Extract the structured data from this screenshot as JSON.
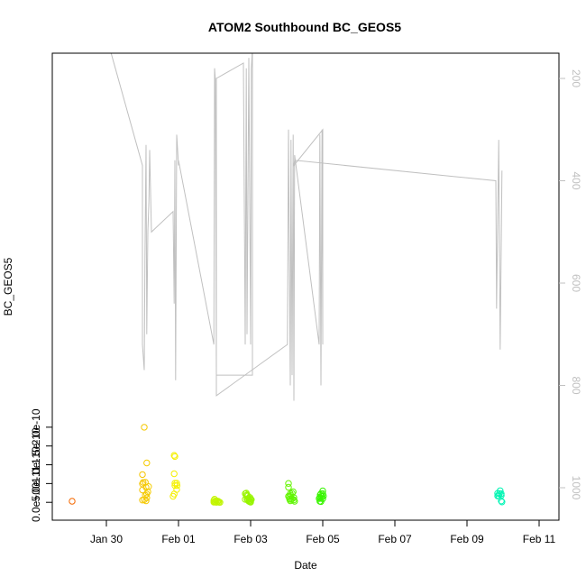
{
  "chart_data": {
    "type": "scatter",
    "title": "ATOM2 Southbound BC_GEOS5",
    "xlabel": "Date",
    "ylabel": "BC_GEOS5",
    "x_ticks": [
      "Jan 30",
      "Feb 01",
      "Feb 03",
      "Feb 05",
      "Feb 07",
      "Feb 09",
      "Feb 11"
    ],
    "y_ticks": [
      "0.0e+00",
      "5.0e-11",
      "1.0e-10",
      "1.5e-10",
      "2.0e-10"
    ],
    "right_ticks": [
      "200",
      "400",
      "600",
      "800",
      "1000"
    ],
    "x_range_days": [
      -1.0,
      11.25
    ],
    "ylim": [
      -6e-12,
      2.11e-10
    ],
    "right_range": [
      1055,
      130
    ],
    "points": [
      {
        "x": -0.95,
        "y": 2.8e-12
      },
      {
        "x": 1.05,
        "y": 2e-10
      },
      {
        "x": 1.12,
        "y": 1.05e-10
      },
      {
        "x": 1.0,
        "y": 7.4e-11
      },
      {
        "x": 1.02,
        "y": 5.3e-11
      },
      {
        "x": 1.08,
        "y": 5.35e-11
      },
      {
        "x": 1.0,
        "y": 4.9e-11
      },
      {
        "x": 1.17,
        "y": 4.2e-11
      },
      {
        "x": 1.1,
        "y": 4e-11
      },
      {
        "x": 1.0,
        "y": 3.3e-11
      },
      {
        "x": 1.15,
        "y": 2.8e-11
      },
      {
        "x": 1.12,
        "y": 2.2e-11
      },
      {
        "x": 1.08,
        "y": 1.9e-11
      },
      {
        "x": 1.12,
        "y": 1.2e-11
      },
      {
        "x": 1.05,
        "y": 7e-12
      },
      {
        "x": 1.0,
        "y": 6e-12
      },
      {
        "x": 1.1,
        "y": 4e-12
      },
      {
        "x": 1.88,
        "y": 1.25e-10
      },
      {
        "x": 1.9,
        "y": 1.22e-10
      },
      {
        "x": 1.88,
        "y": 7.6e-11
      },
      {
        "x": 1.9,
        "y": 5.1e-11
      },
      {
        "x": 1.95,
        "y": 5.1e-11
      },
      {
        "x": 1.9,
        "y": 4.5e-11
      },
      {
        "x": 1.96,
        "y": 4.5e-11
      },
      {
        "x": 1.95,
        "y": 3.4e-11
      },
      {
        "x": 1.88,
        "y": 2.2e-11
      },
      {
        "x": 1.85,
        "y": 1.6e-11
      },
      {
        "x": 3.0,
        "y": 8.5e-12
      },
      {
        "x": 2.98,
        "y": 5e-12
      },
      {
        "x": 3.05,
        "y": 4e-12
      },
      {
        "x": 3.1,
        "y": 3e-12
      },
      {
        "x": 3.0,
        "y": 2e-12
      },
      {
        "x": 3.08,
        "y": 1.5e-12
      },
      {
        "x": 3.02,
        "y": 1e-12
      },
      {
        "x": 2.98,
        "y": 5e-13
      },
      {
        "x": 3.12,
        "y": 5e-13
      },
      {
        "x": 3.05,
        "y": 0.0
      },
      {
        "x": 3.15,
        "y": 0.0
      },
      {
        "x": 3.88,
        "y": 2.45e-11
      },
      {
        "x": 3.85,
        "y": 2.3e-11
      },
      {
        "x": 3.9,
        "y": 2e-11
      },
      {
        "x": 3.88,
        "y": 1.8e-11
      },
      {
        "x": 3.92,
        "y": 1.7e-11
      },
      {
        "x": 3.98,
        "y": 1.3e-11
      },
      {
        "x": 3.95,
        "y": 1e-11
      },
      {
        "x": 3.9,
        "y": 9e-12
      },
      {
        "x": 4.0,
        "y": 8.5e-12
      },
      {
        "x": 3.85,
        "y": 8e-12
      },
      {
        "x": 3.95,
        "y": 7.5e-12
      },
      {
        "x": 4.02,
        "y": 7e-12
      },
      {
        "x": 3.92,
        "y": 6e-12
      },
      {
        "x": 3.98,
        "y": 4.5e-12
      },
      {
        "x": 3.95,
        "y": 3e-12
      },
      {
        "x": 3.98,
        "y": 1.5e-12
      },
      {
        "x": 4.0,
        "y": 5e-13
      },
      {
        "x": 5.05,
        "y": 5.05e-11
      },
      {
        "x": 5.05,
        "y": 4e-11
      },
      {
        "x": 5.18,
        "y": 2.8e-11
      },
      {
        "x": 5.15,
        "y": 2.4e-11
      },
      {
        "x": 5.1,
        "y": 2.3e-11
      },
      {
        "x": 5.12,
        "y": 1.8e-11
      },
      {
        "x": 5.05,
        "y": 1.6e-11
      },
      {
        "x": 5.08,
        "y": 1.55e-11
      },
      {
        "x": 5.2,
        "y": 1.25e-11
      },
      {
        "x": 5.15,
        "y": 9e-12
      },
      {
        "x": 5.08,
        "y": 8.5e-12
      },
      {
        "x": 5.12,
        "y": 7.5e-12
      },
      {
        "x": 5.2,
        "y": 6.5e-12
      },
      {
        "x": 5.1,
        "y": 4e-12
      },
      {
        "x": 5.22,
        "y": 3e-12
      },
      {
        "x": 6.0,
        "y": 3.05e-11
      },
      {
        "x": 5.95,
        "y": 2.3e-11
      },
      {
        "x": 6.0,
        "y": 2.3e-11
      },
      {
        "x": 5.93,
        "y": 2e-11
      },
      {
        "x": 6.02,
        "y": 1.7e-11
      },
      {
        "x": 5.98,
        "y": 1.55e-11
      },
      {
        "x": 5.92,
        "y": 1.35e-11
      },
      {
        "x": 5.95,
        "y": 1.05e-11
      },
      {
        "x": 5.9,
        "y": 1e-11
      },
      {
        "x": 6.0,
        "y": 9.5e-12
      },
      {
        "x": 5.92,
        "y": 3e-12
      },
      {
        "x": 5.95,
        "y": 2e-12
      },
      {
        "x": 10.92,
        "y": 3.1e-11
      },
      {
        "x": 10.85,
        "y": 2.4e-11
      },
      {
        "x": 10.9,
        "y": 2.35e-11
      },
      {
        "x": 10.95,
        "y": 2.3e-11
      },
      {
        "x": 10.95,
        "y": 1.85e-11
      },
      {
        "x": 10.88,
        "y": 1.75e-11
      },
      {
        "x": 10.85,
        "y": 1.7e-11
      },
      {
        "x": 10.95,
        "y": 3.5e-12
      },
      {
        "x": 10.97,
        "y": 1e-12
      }
    ],
    "altitude_line": {
      "x": [
        0.05,
        1.0,
        1.0,
        1.05,
        1.07,
        1.1,
        1.12,
        1.15,
        1.18,
        1.2,
        1.25,
        1.85,
        1.88,
        1.9,
        1.92,
        1.95,
        2.0,
        2.0,
        2.98,
        3.0,
        3.02,
        3.05,
        3.05,
        3.8,
        3.85,
        3.88,
        3.9,
        3.95,
        4.0,
        4.02,
        4.05,
        4.05,
        3.05,
        3.05,
        5.02,
        5.05,
        5.1,
        5.12,
        5.15,
        5.18,
        5.2,
        5.22,
        5.9,
        5.92,
        5.95,
        5.98,
        6.0,
        6.0,
        5.2,
        5.22,
        10.8,
        10.82,
        10.88,
        10.92,
        10.97
      ],
      "alt": [
        130,
        370,
        720,
        770,
        550,
        330,
        700,
        500,
        440,
        340,
        500,
        460,
        640,
        360,
        790,
        310,
        370,
        360,
        720,
        180,
        200,
        780,
        200,
        170,
        720,
        180,
        700,
        160,
        720,
        180,
        140,
        780,
        780,
        820,
        720,
        300,
        800,
        320,
        780,
        310,
        830,
        350,
        720,
        310,
        800,
        300,
        720,
        300,
        370,
        360,
        400,
        650,
        320,
        730,
        380
      ]
    }
  }
}
